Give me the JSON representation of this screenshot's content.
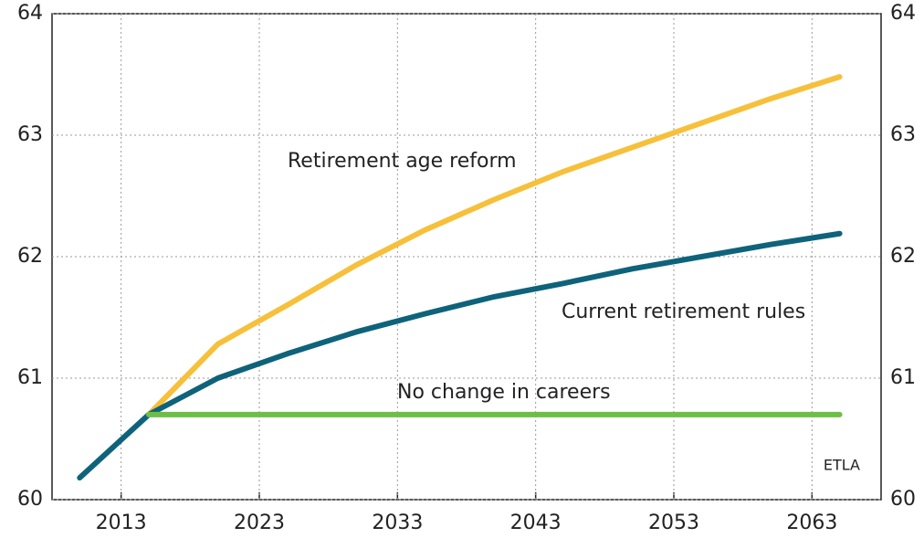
{
  "chart_data": {
    "type": "line",
    "x_years": true,
    "series": [
      {
        "name": "Retirement age reform",
        "color": "#f7c03b",
        "x": [
          2015,
          2020,
          2025,
          2030,
          2035,
          2040,
          2045,
          2050,
          2055,
          2060,
          2065
        ],
        "values": [
          60.7,
          61.28,
          61.6,
          61.93,
          62.22,
          62.47,
          62.7,
          62.9,
          63.1,
          63.3,
          63.48
        ]
      },
      {
        "name": "Current retirement rules",
        "color": "#0e637b",
        "x": [
          2010,
          2015,
          2020,
          2025,
          2030,
          2035,
          2040,
          2045,
          2050,
          2055,
          2060,
          2065
        ],
        "values": [
          60.18,
          60.7,
          61.0,
          61.2,
          61.38,
          61.53,
          61.67,
          61.78,
          61.9,
          62.0,
          62.1,
          62.19
        ]
      },
      {
        "name": "No change in careers",
        "color": "#6cbf45",
        "x": [
          2015,
          2065
        ],
        "values": [
          60.7,
          60.7
        ]
      }
    ],
    "xlim": [
      2008,
      2068
    ],
    "xticks": [
      2013,
      2023,
      2033,
      2043,
      2053,
      2063
    ],
    "ylim": [
      60,
      64
    ],
    "yticks": [
      60,
      61,
      62,
      63,
      64
    ],
    "y2lim": [
      60,
      64
    ],
    "y2ticks": [
      60,
      61,
      62,
      63,
      64
    ],
    "grid": true,
    "source": "ETLA"
  }
}
